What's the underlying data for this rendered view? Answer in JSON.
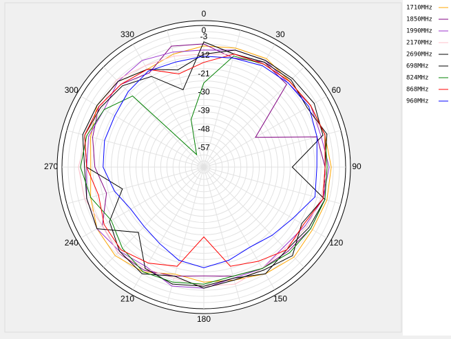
{
  "chart_data": {
    "type": "polar",
    "theta": [
      0,
      15,
      30,
      45,
      60,
      75,
      90,
      105,
      120,
      135,
      150,
      165,
      180,
      195,
      210,
      225,
      240,
      255,
      270,
      285,
      300,
      315,
      330,
      345
    ],
    "thetaticks": [
      0,
      30,
      60,
      90,
      120,
      150,
      180,
      210,
      240,
      270,
      300,
      330
    ],
    "rlim": [
      -69,
      0
    ],
    "rticks": [
      0,
      -3,
      -12,
      -21,
      -30,
      -39,
      -48,
      -57
    ],
    "rgrid": [
      -66,
      -63,
      -60,
      -57,
      -54,
      -51,
      -48,
      -45,
      -42,
      -39,
      -36,
      -33,
      -30,
      -27,
      -24,
      -21,
      -18,
      -15,
      -12,
      -9,
      -6,
      -3
    ],
    "series": [
      {
        "name": "1710MHz",
        "color": "#ffa500",
        "values": [
          -10,
          -9,
          -8,
          -10,
          -9,
          -8,
          -7,
          -7,
          -8,
          -7,
          -9,
          -12,
          -13,
          -15,
          -10,
          -8,
          -9,
          -12,
          -14,
          -12,
          -9,
          -10,
          -14,
          -12
        ]
      },
      {
        "name": "1850MHz",
        "color": "#800080",
        "values": [
          -9,
          -14,
          -10,
          -12,
          -40,
          -12,
          -10,
          -8,
          -9,
          -11,
          -12,
          -14,
          -16,
          -14,
          -11,
          -10,
          -12,
          -20,
          -16,
          -13,
          -10,
          -12,
          -16,
          -8
        ]
      },
      {
        "name": "1990MHz",
        "color": "#9932cc",
        "values": [
          -12,
          -10,
          -9,
          -11,
          -9,
          -10,
          -8,
          -9,
          -12,
          -14,
          -12,
          -13,
          -10,
          -9,
          -13,
          -11,
          -9,
          -10,
          -12,
          -11,
          -13,
          -10,
          -9,
          -11
        ]
      },
      {
        "name": "2170MHz",
        "color": "#ffc0cb",
        "values": [
          -14,
          -12,
          -10,
          -9,
          -11,
          -8,
          -9,
          -10,
          -11,
          -13,
          -12,
          -10,
          -11,
          -13,
          -12,
          -10,
          -12,
          -9,
          -8,
          -10,
          -11,
          -9,
          -12,
          -13
        ]
      },
      {
        "name": "2690MHz",
        "color": "#000000",
        "values": [
          -14,
          -10,
          -9,
          -8,
          -7,
          -9,
          -26,
          -8,
          -10,
          -12,
          -9,
          -13,
          -11,
          -10,
          -12,
          -24,
          -9,
          -10,
          -11,
          -8,
          -9,
          -10,
          -14,
          -20
        ]
      },
      {
        "name": "698MHz",
        "color": "#000000",
        "values": [
          -8,
          -12,
          -10,
          -9,
          -11,
          -7,
          -10,
          -9,
          -14,
          -8,
          -11,
          -12,
          -10,
          -14,
          -9,
          -11,
          -16,
          -28,
          -12,
          -9,
          -11,
          -13,
          -18,
          -30
        ]
      },
      {
        "name": "824MHz",
        "color": "#008000",
        "values": [
          -28,
          -13,
          -11,
          -10,
          -9,
          -8,
          -9,
          -8,
          -9,
          -10,
          -12,
          -14,
          -12,
          -11,
          -10,
          -13,
          -17,
          -12,
          -9,
          -10,
          -13,
          -20,
          -62,
          -45
        ]
      },
      {
        "name": "868MHz",
        "color": "#ff0000",
        "values": [
          -18,
          -12,
          -11,
          -10,
          -9,
          -8,
          -10,
          -9,
          -13,
          -12,
          -16,
          -19,
          -35,
          -19,
          -15,
          -12,
          -13,
          -16,
          -12,
          -9,
          -10,
          -12,
          -14,
          -22
        ]
      },
      {
        "name": "960MHz",
        "color": "#0000ff",
        "values": [
          -15,
          -14,
          -12,
          -11,
          -10,
          -12,
          -14,
          -13,
          -19,
          -22,
          -24,
          -22,
          -20,
          -22,
          -26,
          -28,
          -28,
          -24,
          -20,
          -19,
          -19,
          -17,
          -15,
          -16
        ]
      }
    ]
  }
}
